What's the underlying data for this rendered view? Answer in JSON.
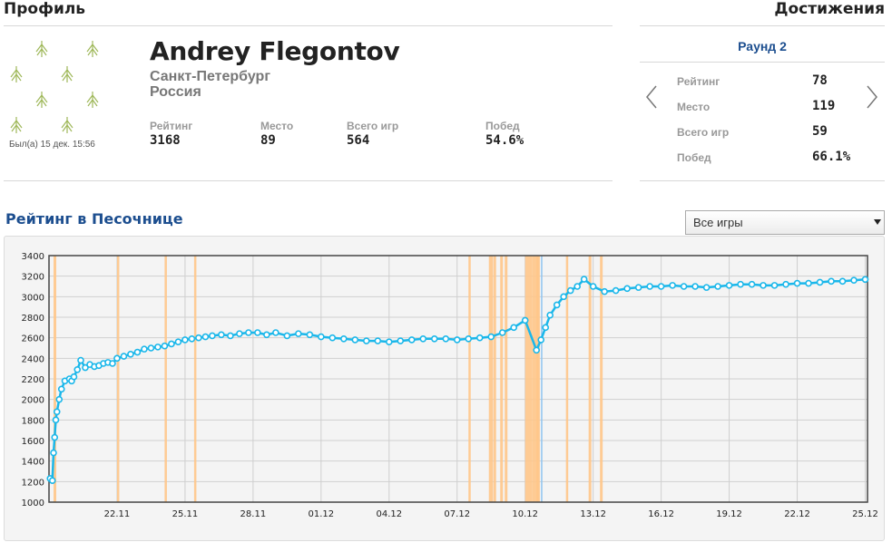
{
  "profile": {
    "section_title": "Профиль",
    "name": "Andrey Flegontov",
    "city": "Санкт-Петербург",
    "country": "Россия",
    "last_seen": "Был(а) 15 дек. 15:56",
    "stats": [
      {
        "label": "Рейтинг",
        "value": "3168"
      },
      {
        "label": "Место",
        "value": "89"
      },
      {
        "label": "Всего игр",
        "value": "564"
      },
      {
        "label": "Побед",
        "value": "54.6%"
      }
    ]
  },
  "achievements": {
    "section_title": "Достижения",
    "round": "Раунд 2",
    "rows": [
      {
        "label": "Рейтинг",
        "value": "78"
      },
      {
        "label": "Место",
        "value": "119"
      },
      {
        "label": "Всего игр",
        "value": "59"
      },
      {
        "label": "Побед",
        "value": "66.1%"
      }
    ],
    "prev_icon": "chevron-left-icon",
    "next_icon": "chevron-right-icon"
  },
  "rating_chart": {
    "title": "Рейтинг в Песочнице",
    "filter_selected": "Все игры"
  },
  "colors": {
    "line": "#1ab7ea",
    "band": "#ffc68a",
    "band_blue": "#8fc4f0",
    "title_blue": "#1c4e8f"
  },
  "chart_data": {
    "type": "line",
    "x_tick_labels": [
      "22.11",
      "25.11",
      "28.11",
      "01.12",
      "04.12",
      "07.12",
      "10.12",
      "13.12",
      "16.12",
      "19.12",
      "22.12",
      "25.12"
    ],
    "x_tick_days": [
      3,
      6,
      9,
      12,
      15,
      18,
      21,
      24,
      27,
      30,
      33,
      36
    ],
    "y_ticks": [
      1000,
      1200,
      1400,
      1600,
      1800,
      2000,
      2200,
      2400,
      2600,
      2800,
      3000,
      3200,
      3400
    ],
    "xlim": [
      0,
      36.1
    ],
    "ylim": [
      1000,
      3400
    ],
    "grid": true,
    "series": [
      {
        "x": [
          0.05,
          0.15,
          0.2,
          0.25,
          0.3,
          0.35,
          0.45,
          0.55,
          0.7,
          0.9,
          1.0,
          1.1,
          1.25,
          1.4,
          1.6,
          1.8,
          2.0,
          2.2,
          2.4,
          2.6,
          2.8,
          3.0,
          3.3,
          3.6,
          3.9,
          4.2,
          4.5,
          4.8,
          5.1,
          5.4,
          5.7,
          6.0,
          6.3,
          6.6,
          6.9,
          7.2,
          7.6,
          8.0,
          8.4,
          8.8,
          9.2,
          9.6,
          10.0,
          10.5,
          11.0,
          11.5,
          12.0,
          12.5,
          13.0,
          13.5,
          14.0,
          14.5,
          15.0,
          15.5,
          16.0,
          16.5,
          17.0,
          17.5,
          18.0,
          18.5,
          19.0,
          19.5,
          20.0,
          20.5,
          21.0,
          21.5,
          21.7,
          21.9,
          22.1,
          22.4,
          22.7,
          23.0,
          23.3,
          23.6,
          24.0,
          24.5,
          25.0,
          25.5,
          26.0,
          26.5,
          27.0,
          27.5,
          28.0,
          28.5,
          29.0,
          29.5,
          30.0,
          30.5,
          31.0,
          31.5,
          32.0,
          32.5,
          33.0,
          33.5,
          34.0,
          34.5,
          35.0,
          35.5,
          36.0
        ],
        "y": [
          1230,
          1210,
          1480,
          1630,
          1800,
          1880,
          2000,
          2100,
          2180,
          2200,
          2180,
          2220,
          2290,
          2380,
          2310,
          2340,
          2320,
          2330,
          2350,
          2360,
          2350,
          2400,
          2420,
          2440,
          2460,
          2490,
          2500,
          2510,
          2520,
          2540,
          2560,
          2580,
          2590,
          2600,
          2610,
          2620,
          2630,
          2620,
          2640,
          2650,
          2650,
          2630,
          2650,
          2620,
          2640,
          2630,
          2610,
          2600,
          2590,
          2580,
          2570,
          2570,
          2560,
          2570,
          2580,
          2590,
          2590,
          2590,
          2580,
          2590,
          2600,
          2610,
          2650,
          2700,
          2770,
          2480,
          2580,
          2700,
          2820,
          2920,
          3000,
          3060,
          3100,
          3170,
          3100,
          3050,
          3060,
          3080,
          3090,
          3100,
          3100,
          3110,
          3100,
          3100,
          3090,
          3100,
          3110,
          3120,
          3120,
          3110,
          3110,
          3120,
          3130,
          3130,
          3140,
          3150,
          3150,
          3160,
          3168
        ]
      }
    ],
    "bands_days": [
      0.2,
      3.0,
      5.1,
      6.4,
      18.5,
      19.4,
      19.6,
      19.9,
      20.1,
      21.0,
      21.3,
      21.5,
      22.8,
      23.8,
      24.3
    ],
    "band_widths_days": [
      0.12,
      0.1,
      0.1,
      0.1,
      0.1,
      0.18,
      0.12,
      0.12,
      0.12,
      0.3,
      0.35,
      0.1,
      0.1,
      0.12,
      0.12
    ],
    "blue_band_day": 21.7
  }
}
